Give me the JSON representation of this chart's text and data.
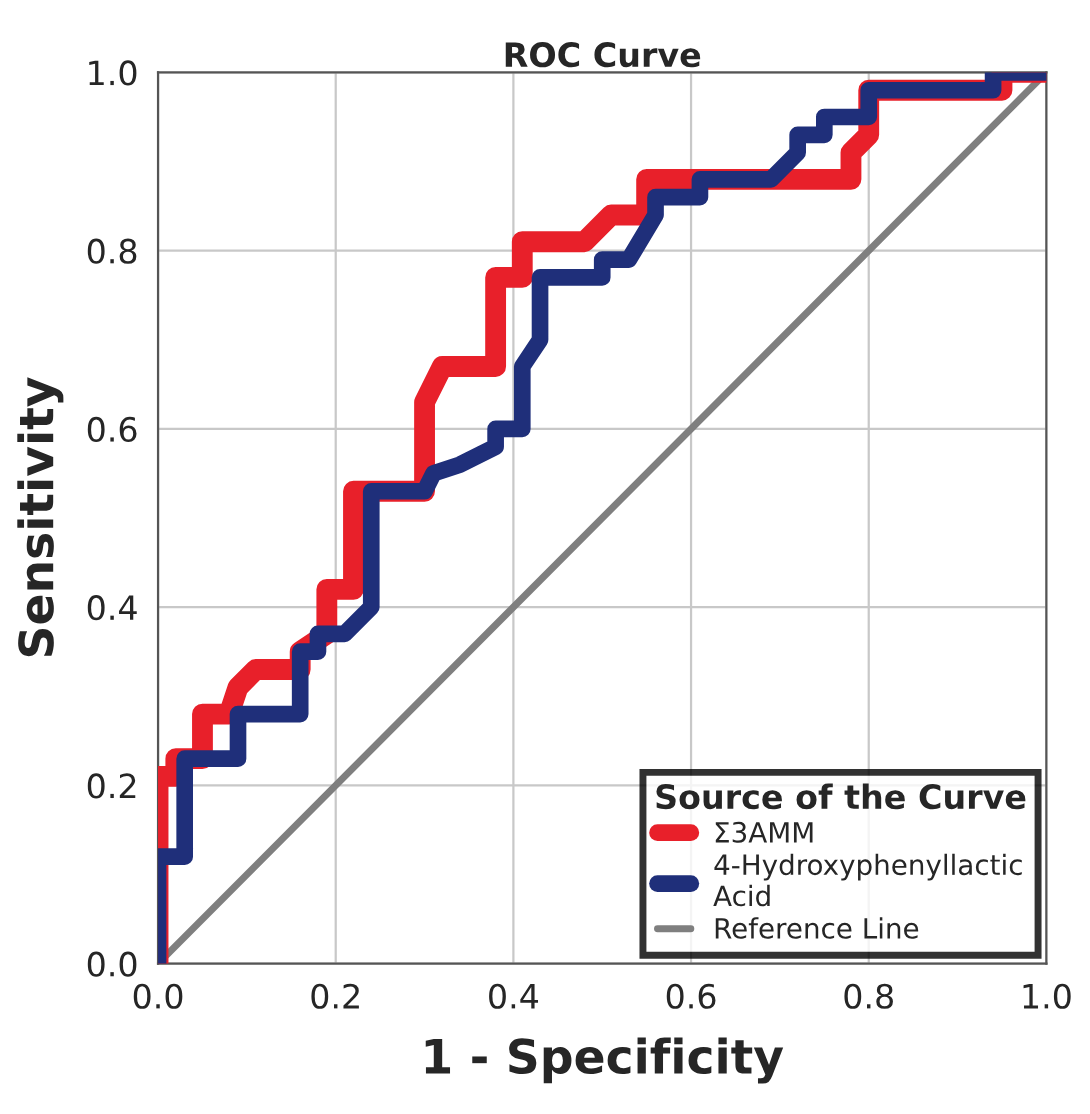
{
  "chart_data": {
    "type": "line",
    "title": "ROC Curve",
    "xlabel": "1 - Specificity",
    "ylabel": "Sensitivity",
    "legend_title": "Source of the Curve",
    "xlim": [
      0,
      1
    ],
    "ylim": [
      0,
      1
    ],
    "xticks": [
      "0.0",
      0.2,
      0.4,
      0.6,
      0.8,
      "1.0"
    ],
    "yticks": [
      "0.0",
      0.2,
      0.4,
      0.6,
      0.8,
      "1.0"
    ],
    "grid": true,
    "legend": "bottom right",
    "marker": "none",
    "line_style": "solid",
    "series": [
      {
        "name": "Σ3AMM",
        "color": "#e8202a",
        "x": [
          0,
          0,
          0,
          0.02,
          0.02,
          0.05,
          0.05,
          0.08,
          0.09,
          0.11,
          0.16,
          0.16,
          0.19,
          0.19,
          0.22,
          0.22,
          0.3,
          0.3,
          0.32,
          0.38,
          0.38,
          0.41,
          0.41,
          0.48,
          0.51,
          0.55,
          0.55,
          0.78,
          0.78,
          0.8,
          0.8,
          0.95,
          0.95,
          1
        ],
        "values": [
          0,
          0.13,
          0.21,
          0.21,
          0.23,
          0.23,
          0.28,
          0.28,
          0.31,
          0.33,
          0.33,
          0.35,
          0.37,
          0.42,
          0.42,
          0.53,
          0.53,
          0.63,
          0.67,
          0.67,
          0.77,
          0.77,
          0.81,
          0.81,
          0.84,
          0.84,
          0.88,
          0.88,
          0.91,
          0.93,
          0.98,
          0.98,
          1,
          1
        ]
      },
      {
        "name": "4-Hydroxyphenyllactic\nAcid",
        "color": "#1f2f7a",
        "x": [
          0,
          0,
          0.03,
          0.03,
          0.09,
          0.09,
          0.16,
          0.16,
          0.18,
          0.18,
          0.21,
          0.24,
          0.24,
          0.3,
          0.31,
          0.34,
          0.38,
          0.38,
          0.41,
          0.41,
          0.43,
          0.43,
          0.5,
          0.5,
          0.53,
          0.56,
          0.56,
          0.61,
          0.61,
          0.69,
          0.72,
          0.72,
          0.75,
          0.75,
          0.8,
          0.8,
          0.94,
          0.94,
          1
        ],
        "values": [
          0,
          0.12,
          0.12,
          0.23,
          0.23,
          0.28,
          0.28,
          0.35,
          0.35,
          0.37,
          0.37,
          0.4,
          0.53,
          0.53,
          0.55,
          0.56,
          0.58,
          0.6,
          0.6,
          0.67,
          0.7,
          0.77,
          0.77,
          0.79,
          0.79,
          0.84,
          0.86,
          0.86,
          0.88,
          0.88,
          0.91,
          0.93,
          0.93,
          0.95,
          0.95,
          0.98,
          0.98,
          1,
          1
        ]
      },
      {
        "name": "Reference Line",
        "color": "#7f7f7f",
        "x": [
          0,
          1
        ],
        "values": [
          0,
          1
        ]
      }
    ]
  }
}
